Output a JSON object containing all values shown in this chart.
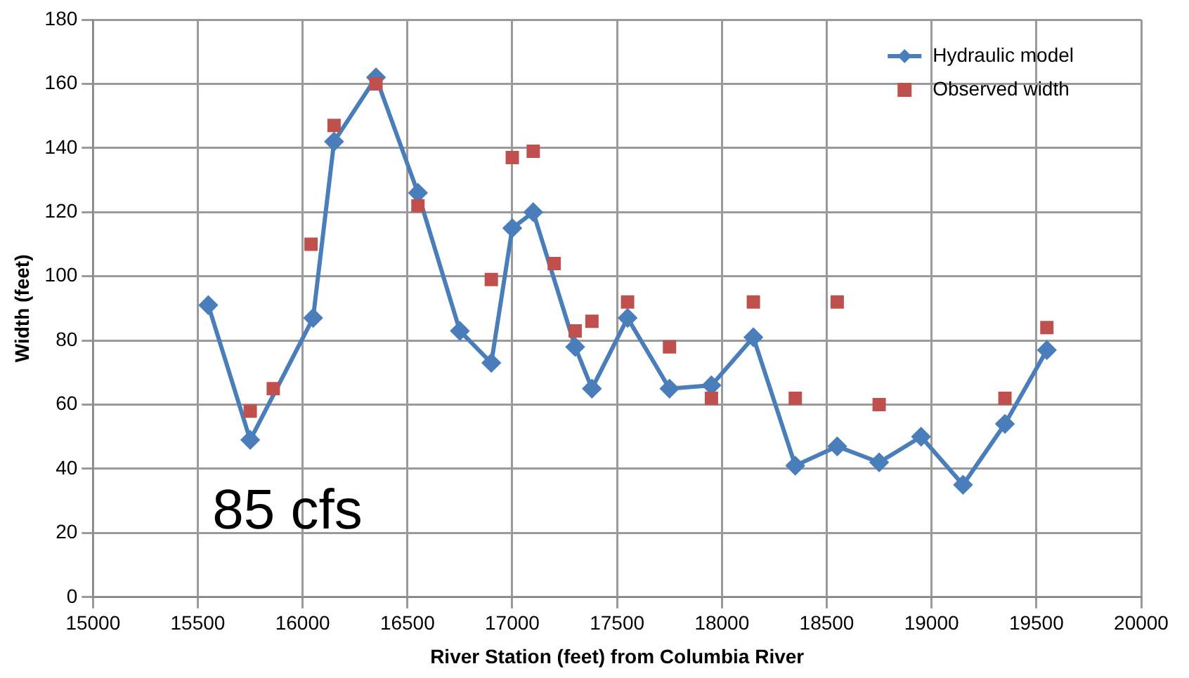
{
  "chart_data": {
    "type": "line",
    "xlabel": "River Station (feet) from Columbia River",
    "ylabel": "Width (feet)",
    "xlim": [
      15000,
      20000
    ],
    "xticks": [
      15000,
      15500,
      16000,
      16500,
      17000,
      17500,
      18000,
      18500,
      19000,
      19500,
      20000
    ],
    "ylim": [
      0,
      180
    ],
    "yticks": [
      0,
      20,
      40,
      60,
      80,
      100,
      120,
      140,
      160,
      180
    ],
    "grid": true,
    "legend": "top right",
    "annotations": [
      "85 cfs"
    ],
    "series": [
      {
        "name": "Hydraulic model",
        "marker": "diamond",
        "color": "#4a7ebb",
        "x": [
          15550,
          15750,
          16050,
          16150,
          16350,
          16550,
          16750,
          16900,
          17000,
          17100,
          17300,
          17380,
          17550,
          17750,
          17950,
          18150,
          18350,
          18550,
          18750,
          18950,
          19150,
          19350,
          19550
        ],
        "values": [
          91,
          49,
          87,
          142,
          162,
          126,
          83,
          73,
          115,
          120,
          78,
          65,
          87,
          65,
          66,
          81,
          41,
          47,
          42,
          50,
          35,
          54,
          77
        ]
      },
      {
        "name": "Observed width",
        "type": "scatter",
        "marker": "square",
        "color": "#c0504d",
        "x": [
          15750,
          15860,
          16040,
          16150,
          16350,
          16550,
          16900,
          17000,
          17100,
          17200,
          17300,
          17380,
          17550,
          17750,
          17950,
          18150,
          18350,
          18550,
          18750,
          19350,
          19550
        ],
        "values": [
          58,
          65,
          110,
          147,
          160,
          122,
          99,
          137,
          139,
          104,
          83,
          86,
          92,
          78,
          62,
          92,
          62,
          92,
          60,
          62,
          84
        ]
      }
    ]
  }
}
